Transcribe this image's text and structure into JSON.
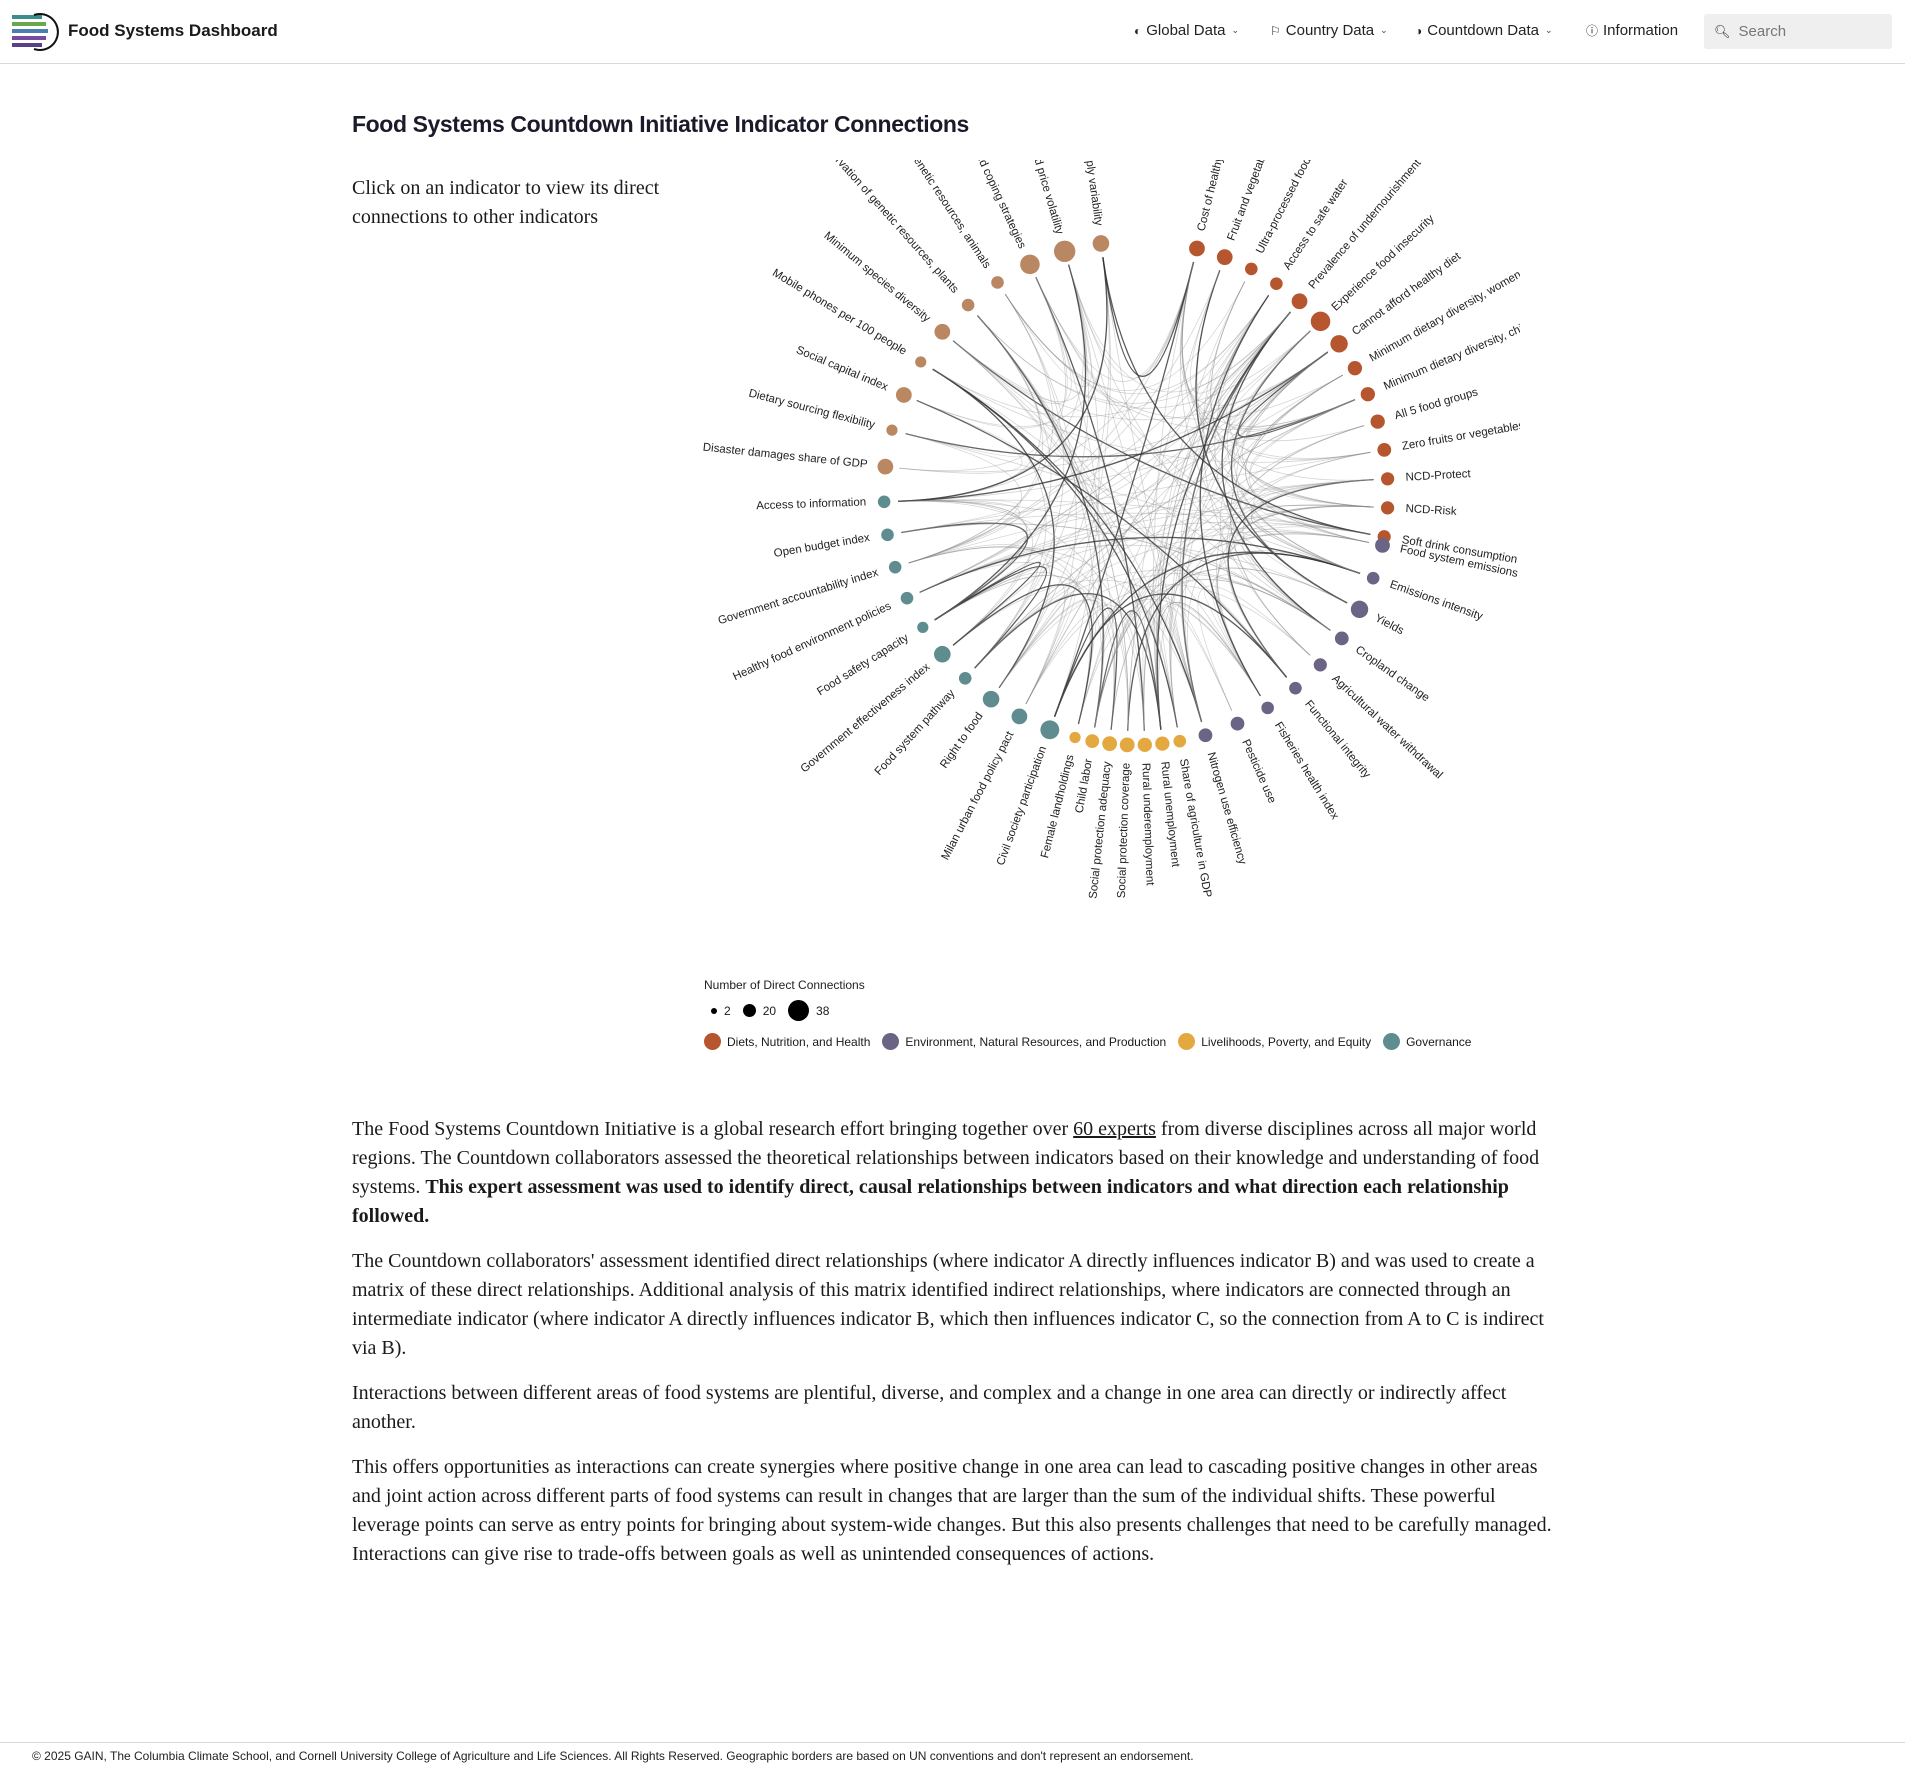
{
  "nav": {
    "brand": "Food Systems Dashboard",
    "items": [
      {
        "label": "Global Data",
        "icon": "globe-icon",
        "dropdown": true
      },
      {
        "label": "Country Data",
        "icon": "flag-icon",
        "dropdown": true
      },
      {
        "label": "Countdown Data",
        "icon": "countdown-icon",
        "dropdown": true
      },
      {
        "label": "Information",
        "icon": "info-icon",
        "dropdown": false
      }
    ],
    "search_placeholder": "Search"
  },
  "page": {
    "title": "Food Systems Countdown Initiative Indicator Connections",
    "instruction": "Click on an indicator to view its direct connections to other indicators"
  },
  "chart_data": {
    "type": "chord-network",
    "title": "Food Systems Countdown Initiative Indicator Connections",
    "categories": [
      {
        "name": "Diets, Nutrition, and Health",
        "color": "#b5562e"
      },
      {
        "name": "Environment, Natural Resources, and Production",
        "color": "#6b6485"
      },
      {
        "name": "Livelihoods, Poverty, and Equity",
        "color": "#e4a840"
      },
      {
        "name": "Governance",
        "color": "#5f8d8f"
      }
    ],
    "nodes": [
      {
        "label": "Cost of healthy diet",
        "category": 0,
        "connections": 12
      },
      {
        "label": "Fruit and vegetable availability",
        "category": 0,
        "connections": 12
      },
      {
        "label": "Ultra-processed food sales",
        "category": 0,
        "connections": 6
      },
      {
        "label": "Access to safe water",
        "category": 0,
        "connections": 6
      },
      {
        "label": "Prevalence of undernourishment",
        "category": 0,
        "connections": 12
      },
      {
        "label": "Experience food insecurity",
        "category": 0,
        "connections": 22
      },
      {
        "label": "Cannot afford healthy diet",
        "category": 0,
        "connections": 16
      },
      {
        "label": "Minimum dietary diversity, women",
        "category": 0,
        "connections": 9
      },
      {
        "label": "Minimum dietary diversity, child",
        "category": 0,
        "connections": 9
      },
      {
        "label": "All 5 food groups",
        "category": 0,
        "connections": 9
      },
      {
        "label": "Zero fruits or vegetables",
        "category": 0,
        "connections": 8
      },
      {
        "label": "NCD-Protect",
        "category": 0,
        "connections": 7
      },
      {
        "label": "NCD-Risk",
        "category": 0,
        "connections": 7
      },
      {
        "label": "Soft drink consumption",
        "category": 0,
        "connections": 7
      },
      {
        "label": "Food system emissions",
        "category": 1,
        "connections": 10
      },
      {
        "label": "Emissions intensity",
        "category": 1,
        "connections": 6
      },
      {
        "label": "Yields",
        "category": 1,
        "connections": 16
      },
      {
        "label": "Cropland change",
        "category": 1,
        "connections": 8
      },
      {
        "label": "Agricultural water withdrawal",
        "category": 1,
        "connections": 7
      },
      {
        "label": "Functional integrity",
        "category": 1,
        "connections": 6
      },
      {
        "label": "Fisheries health index",
        "category": 1,
        "connections": 6
      },
      {
        "label": "Pesticide use",
        "category": 1,
        "connections": 8
      },
      {
        "label": "Nitrogen use efficiency",
        "category": 1,
        "connections": 8
      },
      {
        "label": "Share of agriculture in GDP",
        "category": 2,
        "connections": 6
      },
      {
        "label": "Rural unemployment",
        "category": 2,
        "connections": 9
      },
      {
        "label": "Rural underemployment",
        "category": 2,
        "connections": 9
      },
      {
        "label": "Social protection coverage",
        "category": 2,
        "connections": 10
      },
      {
        "label": "Social protection adequacy",
        "category": 2,
        "connections": 10
      },
      {
        "label": "Child labor",
        "category": 2,
        "connections": 8
      },
      {
        "label": "Female landholdings",
        "category": 2,
        "connections": 4
      },
      {
        "label": "Civil society participation",
        "category": 3,
        "connections": 20
      },
      {
        "label": "Milan urban food policy pact",
        "category": 3,
        "connections": 12
      },
      {
        "label": "Right to food",
        "category": 3,
        "connections": 14
      },
      {
        "label": "Food system pathway",
        "category": 3,
        "connections": 6
      },
      {
        "label": "Government effectiveness index",
        "category": 3,
        "connections": 14
      },
      {
        "label": "Food safety capacity",
        "category": 3,
        "connections": 4
      },
      {
        "label": "Healthy food environment policies",
        "category": 3,
        "connections": 6
      },
      {
        "label": "Government accountability index",
        "category": 3,
        "connections": 6
      },
      {
        "label": "Open budget index",
        "category": 3,
        "connections": 6
      },
      {
        "label": "Access to information",
        "category": 3,
        "connections": 6
      },
      {
        "label": "Disaster damages share of GDP",
        "category": 4,
        "connections": 12
      },
      {
        "label": "Dietary sourcing flexibility",
        "category": 4,
        "connections": 4
      },
      {
        "label": "Social capital index",
        "category": 4,
        "connections": 12
      },
      {
        "label": "Mobile phones per 100 people",
        "category": 4,
        "connections": 4
      },
      {
        "label": "Minimum species diversity",
        "category": 4,
        "connections": 12
      },
      {
        "label": "Conservation of genetic resources, plants",
        "category": 4,
        "connections": 6
      },
      {
        "label": "Conservation of genetic resources, animals",
        "category": 4,
        "connections": 6
      },
      {
        "label": "Reduced coping strategies",
        "category": 4,
        "connections": 22
      },
      {
        "label": "Food price volatility",
        "category": 4,
        "connections": 28
      },
      {
        "label": "Food supply variability",
        "category": 4,
        "connections": 14
      }
    ],
    "legend": {
      "size_title": "Number of Direct Connections",
      "sizes": [
        2,
        20,
        38
      ]
    }
  },
  "body": {
    "p1_a": "The Food Systems Countdown Initiative is a global research effort bringing together over ",
    "p1_link": "60 experts",
    "p1_b": " from diverse disciplines across all major world regions. The Countdown collaborators assessed the theoretical relationships between indicators based on their knowledge and understanding of food systems. ",
    "p1_bold": "This expert assessment was used to identify direct, causal relationships between indicators and what direction each relationship followed.",
    "p2": "The Countdown collaborators' assessment identified direct relationships (where indicator A directly influences indicator B) and was used to create a matrix of these direct relationships. Additional analysis of this matrix identified indirect relationships, where indicators are connected through an intermediate indicator (where indicator A directly influences indicator B, which then influences indicator C, so the connection from A to C is indirect via B).",
    "p3": "Interactions between different areas of food systems are plentiful, diverse, and complex and a change in one area can directly or indirectly affect another.",
    "p4": "This offers opportunities as interactions can create synergies where positive change in one area can lead to cascading positive changes in other areas and joint action across different parts of food systems can result in changes that are larger than the sum of the individual shifts. These powerful leverage points can serve as entry points for bringing about system-wide changes. But this also presents challenges that need to be carefully managed. Interactions can give rise to trade-offs between goals as well as unintended consequences of actions."
  },
  "footer": {
    "text": "© 2025 GAIN, The Columbia Climate School, and Cornell University College of Agriculture and Life Sciences. All Rights Reserved. Geographic borders are based on UN conventions and don't represent an endorsement."
  }
}
